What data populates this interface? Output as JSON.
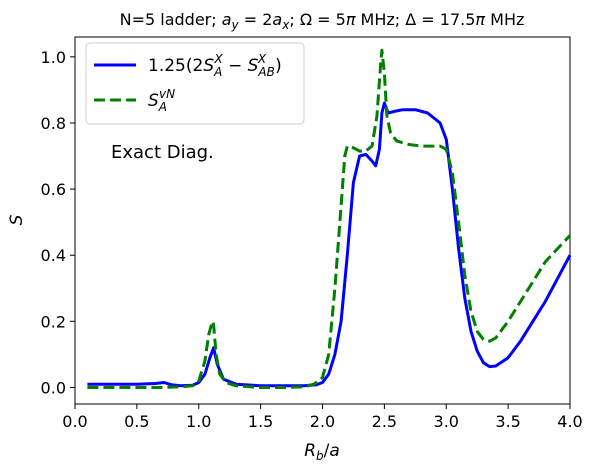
{
  "chart_data": {
    "type": "line",
    "title": "N=5 ladder; a_y = 2a_x; Ω = 5π MHz; Δ = 17.5π MHz",
    "xlabel": "R_b/a",
    "ylabel": "S",
    "xlim": [
      0.0,
      4.0
    ],
    "ylim": [
      -0.05,
      1.06
    ],
    "xticks": [
      "0.0",
      "0.5",
      "1.0",
      "1.5",
      "2.0",
      "2.5",
      "3.0",
      "3.5",
      "4.0"
    ],
    "xtick_values": [
      0.0,
      0.5,
      1.0,
      1.5,
      2.0,
      2.5,
      3.0,
      3.5,
      4.0
    ],
    "yticks": [
      "0.0",
      "0.2",
      "0.4",
      "0.6",
      "0.8",
      "1.0"
    ],
    "ytick_values": [
      0.0,
      0.2,
      0.4,
      0.6,
      0.8,
      1.0
    ],
    "grid": false,
    "legend_position": "top-left",
    "annotation": "Exact Diag.",
    "series": [
      {
        "name": "1.25(2S_A^X − S_AB^X)",
        "color": "#0000ff",
        "style": "solid",
        "x": [
          0.1,
          0.3,
          0.5,
          0.65,
          0.72,
          0.78,
          0.85,
          0.95,
          1.0,
          1.05,
          1.09,
          1.12,
          1.15,
          1.2,
          1.3,
          1.5,
          1.7,
          1.85,
          1.95,
          2.0,
          2.05,
          2.1,
          2.15,
          2.2,
          2.25,
          2.3,
          2.35,
          2.4,
          2.43,
          2.46,
          2.48,
          2.5,
          2.53,
          2.58,
          2.65,
          2.75,
          2.85,
          2.95,
          3.0,
          3.05,
          3.1,
          3.15,
          3.2,
          3.25,
          3.3,
          3.35,
          3.4,
          3.5,
          3.6,
          3.7,
          3.8,
          3.9,
          4.0
        ],
        "y": [
          0.01,
          0.01,
          0.01,
          0.012,
          0.015,
          0.008,
          0.005,
          0.007,
          0.015,
          0.04,
          0.09,
          0.12,
          0.07,
          0.025,
          0.01,
          0.005,
          0.005,
          0.005,
          0.008,
          0.015,
          0.04,
          0.1,
          0.2,
          0.4,
          0.62,
          0.7,
          0.705,
          0.685,
          0.67,
          0.72,
          0.83,
          0.86,
          0.83,
          0.835,
          0.84,
          0.84,
          0.83,
          0.8,
          0.75,
          0.6,
          0.42,
          0.27,
          0.17,
          0.11,
          0.075,
          0.063,
          0.065,
          0.09,
          0.14,
          0.2,
          0.26,
          0.33,
          0.4
        ]
      },
      {
        "name": "S_A^vN",
        "color": "#008000",
        "style": "dashed",
        "x": [
          0.1,
          0.3,
          0.5,
          0.7,
          0.85,
          0.95,
          1.0,
          1.05,
          1.08,
          1.11,
          1.12,
          1.14,
          1.17,
          1.22,
          1.3,
          1.5,
          1.7,
          1.85,
          1.93,
          2.0,
          2.05,
          2.1,
          2.15,
          2.18,
          2.2,
          2.25,
          2.3,
          2.35,
          2.4,
          2.44,
          2.47,
          2.48,
          2.5,
          2.52,
          2.55,
          2.6,
          2.7,
          2.8,
          2.9,
          2.95,
          3.0,
          3.05,
          3.1,
          3.15,
          3.2,
          3.25,
          3.3,
          3.35,
          3.4,
          3.5,
          3.6,
          3.7,
          3.8,
          3.9,
          4.0
        ],
        "y": [
          0.0,
          0.0,
          0.0,
          0.0,
          0.002,
          0.005,
          0.02,
          0.08,
          0.16,
          0.2,
          0.19,
          0.1,
          0.04,
          0.015,
          0.005,
          0.0,
          0.0,
          0.002,
          0.01,
          0.03,
          0.1,
          0.3,
          0.55,
          0.7,
          0.73,
          0.725,
          0.715,
          0.715,
          0.73,
          0.82,
          0.98,
          1.02,
          0.95,
          0.82,
          0.77,
          0.745,
          0.735,
          0.73,
          0.73,
          0.73,
          0.72,
          0.65,
          0.5,
          0.34,
          0.23,
          0.17,
          0.145,
          0.14,
          0.15,
          0.2,
          0.26,
          0.32,
          0.38,
          0.42,
          0.46
        ]
      }
    ]
  }
}
